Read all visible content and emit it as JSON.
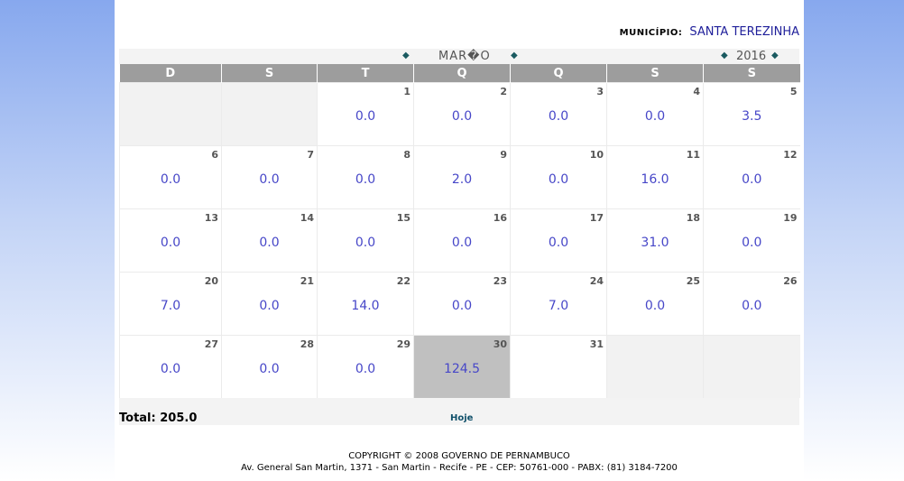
{
  "header": {
    "municipio_label": "MUNICÍPIO:",
    "municipio_name": "SANTA TEREZINHA"
  },
  "calendar": {
    "month": "MAR�O",
    "year": "2016",
    "nav_icon": "diamond-arrow-icon",
    "weekdays": [
      "D",
      "S",
      "T",
      "Q",
      "Q",
      "S",
      "S"
    ],
    "weeks": [
      [
        {
          "day": "",
          "value": ""
        },
        {
          "day": "",
          "value": ""
        },
        {
          "day": "1",
          "value": "0.0"
        },
        {
          "day": "2",
          "value": "0.0"
        },
        {
          "day": "3",
          "value": "0.0"
        },
        {
          "day": "4",
          "value": "0.0"
        },
        {
          "day": "5",
          "value": "3.5"
        }
      ],
      [
        {
          "day": "6",
          "value": "0.0"
        },
        {
          "day": "7",
          "value": "0.0"
        },
        {
          "day": "8",
          "value": "0.0"
        },
        {
          "day": "9",
          "value": "2.0"
        },
        {
          "day": "10",
          "value": "0.0"
        },
        {
          "day": "11",
          "value": "16.0"
        },
        {
          "day": "12",
          "value": "0.0"
        }
      ],
      [
        {
          "day": "13",
          "value": "0.0"
        },
        {
          "day": "14",
          "value": "0.0"
        },
        {
          "day": "15",
          "value": "0.0"
        },
        {
          "day": "16",
          "value": "0.0"
        },
        {
          "day": "17",
          "value": "0.0"
        },
        {
          "day": "18",
          "value": "31.0"
        },
        {
          "day": "19",
          "value": "0.0"
        }
      ],
      [
        {
          "day": "20",
          "value": "7.0"
        },
        {
          "day": "21",
          "value": "0.0"
        },
        {
          "day": "22",
          "value": "14.0"
        },
        {
          "day": "23",
          "value": "0.0"
        },
        {
          "day": "24",
          "value": "7.0"
        },
        {
          "day": "25",
          "value": "0.0"
        },
        {
          "day": "26",
          "value": "0.0"
        }
      ],
      [
        {
          "day": "27",
          "value": "0.0"
        },
        {
          "day": "28",
          "value": "0.0"
        },
        {
          "day": "29",
          "value": "0.0"
        },
        {
          "day": "30",
          "value": "124.5"
        },
        {
          "day": "31",
          "value": ""
        },
        {
          "day": "",
          "value": ""
        },
        {
          "day": "",
          "value": ""
        }
      ]
    ],
    "today": "30",
    "total": "Total: 205.0",
    "hoje_label": "Hoje"
  },
  "footer": {
    "copyright": "COPYRIGHT © 2008 GOVERNO DE PERNAMBUCO",
    "address": "Av. General San Martin, 1371 - San Martin - Recife - PE - CEP: 50761-000 - PABX: (81) 3184-7200"
  },
  "colors": {
    "value_text": "#4747c8",
    "header_bar": "#9d9d9d",
    "today_cell": "#c0c0c0",
    "municipio_name": "#1f1f9a"
  }
}
